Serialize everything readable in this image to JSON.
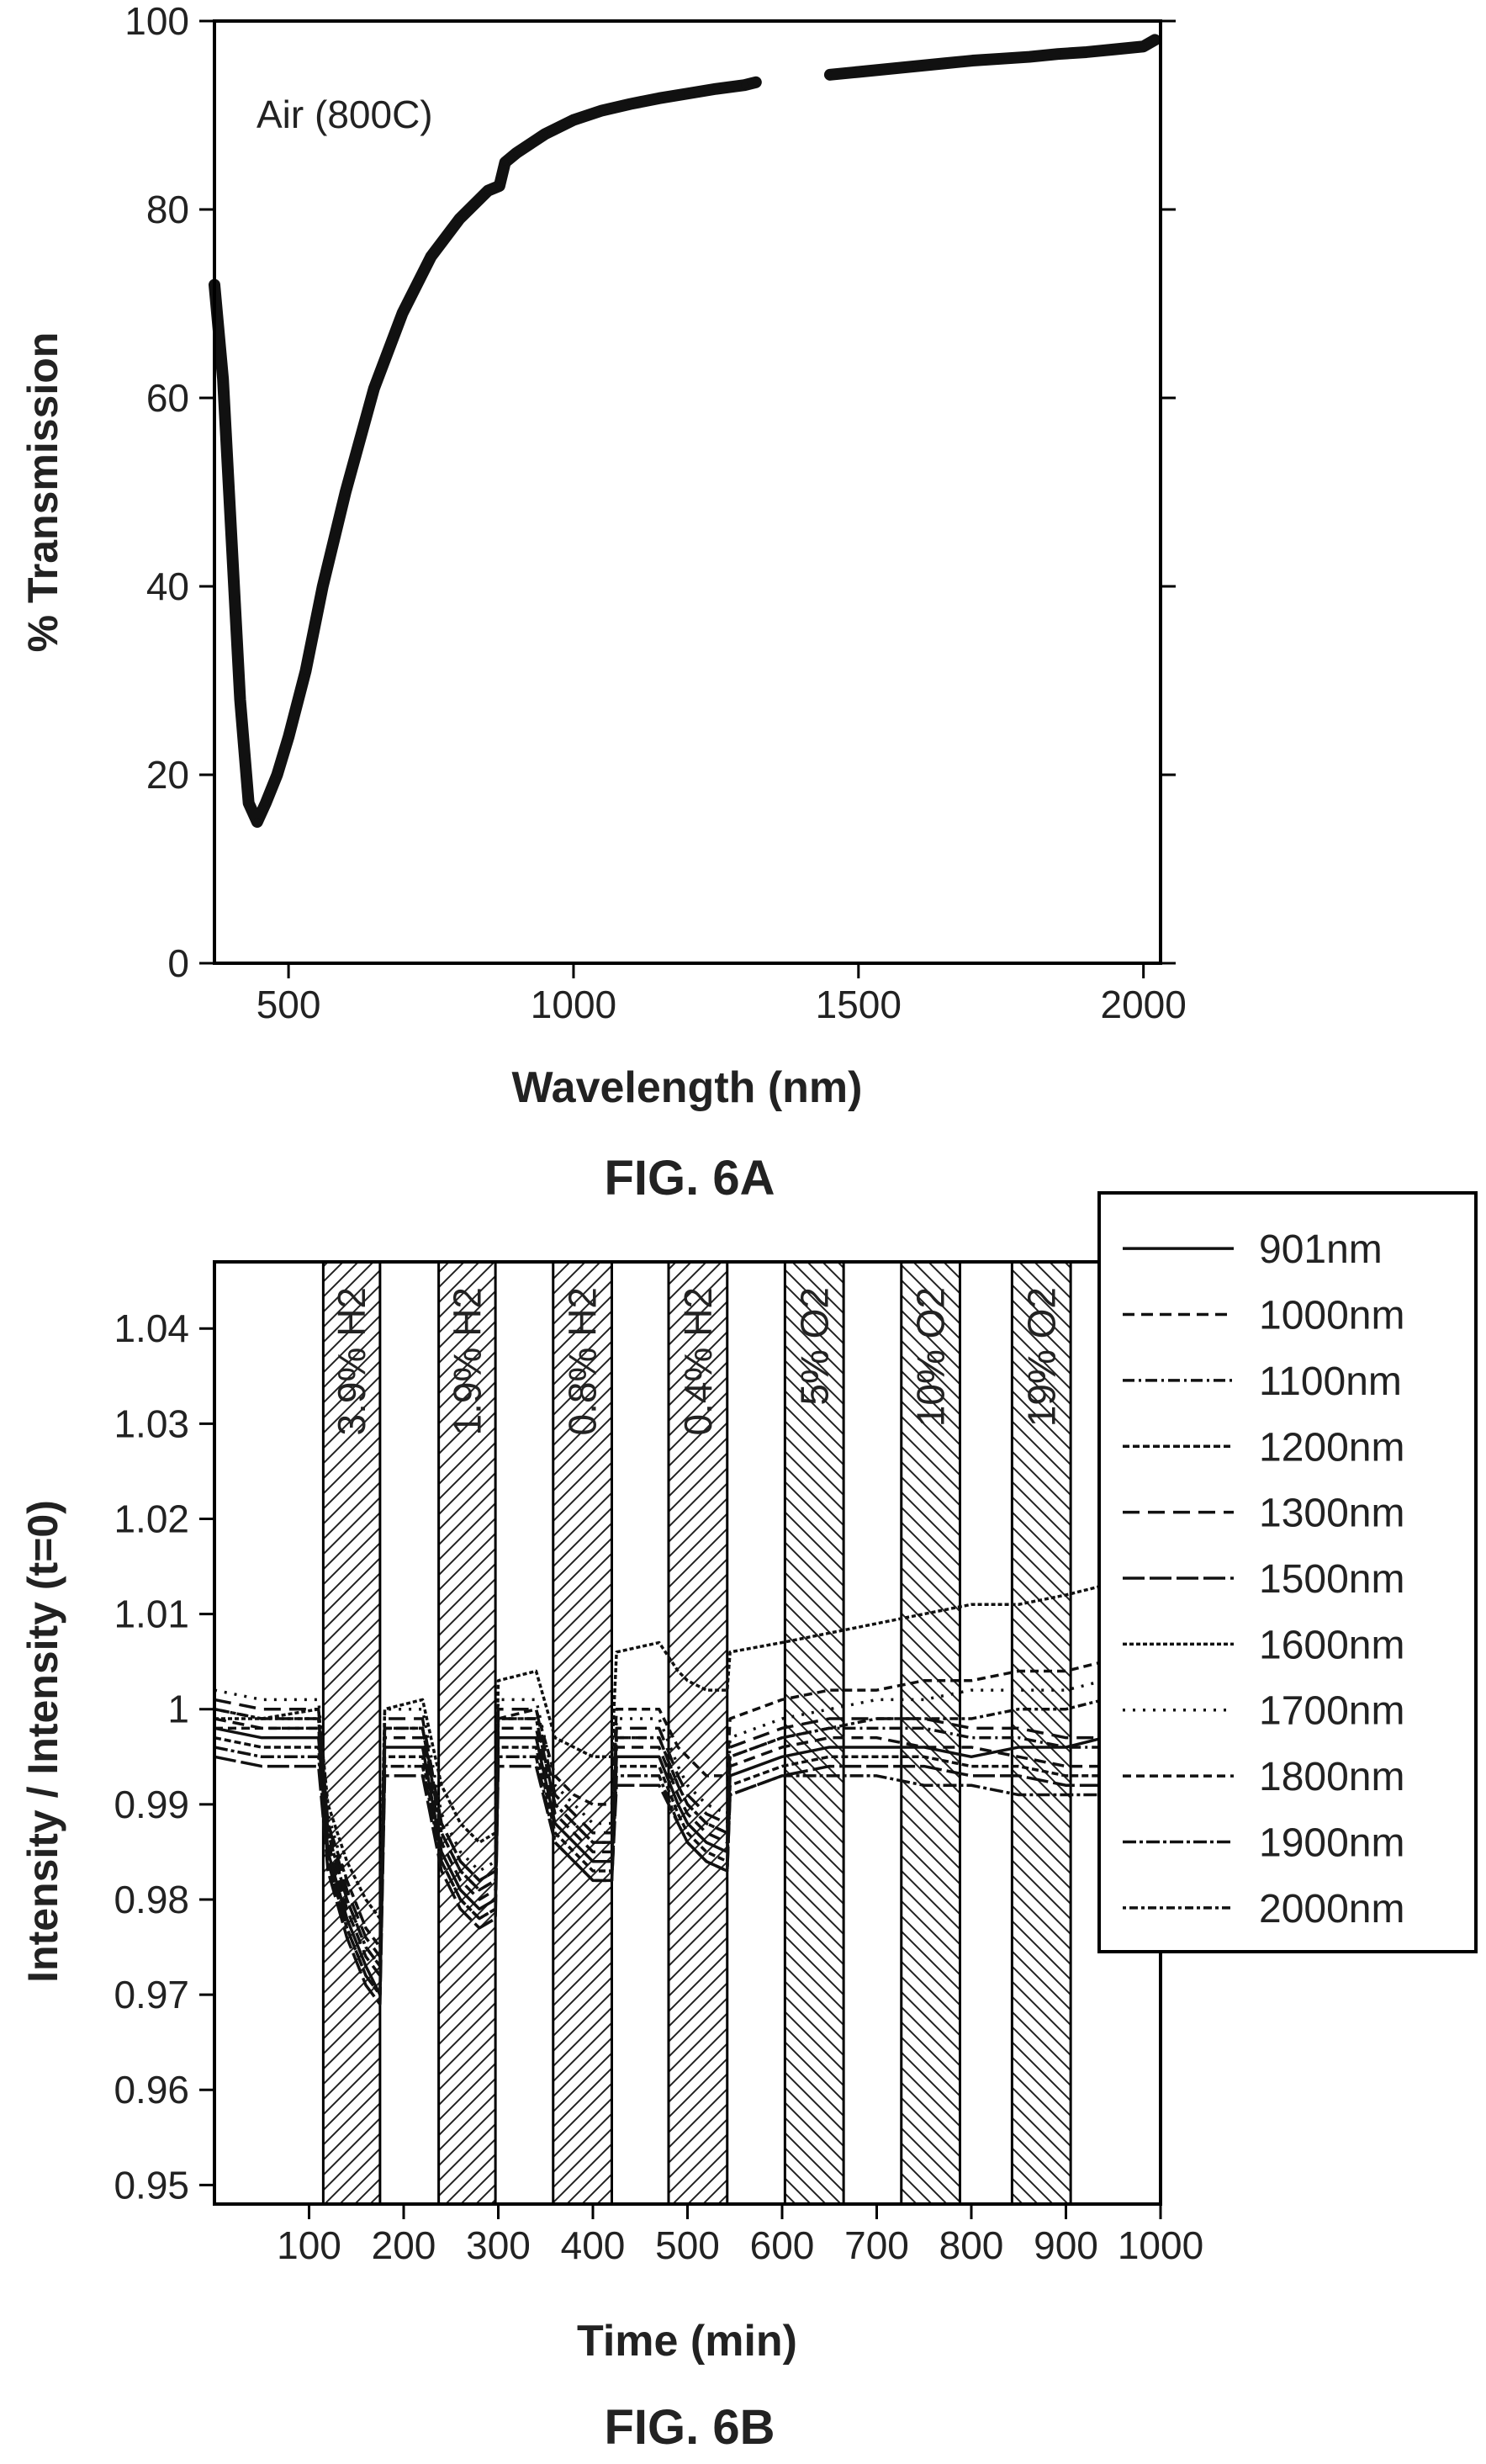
{
  "chart_data": [
    {
      "type": "scatter",
      "figure_label": "FIG. 6A",
      "xlabel": "Wavelength (nm)",
      "ylabel": "% Transmission",
      "xlim": [
        370,
        2030
      ],
      "ylim": [
        0,
        100
      ],
      "x_ticks": [
        500,
        1000,
        1500,
        2000
      ],
      "y_ticks": [
        0,
        20,
        40,
        60,
        80,
        100
      ],
      "annotation": "Air (800C)",
      "reference_line": {
        "y": 100,
        "style": "dotted"
      },
      "grid": false,
      "series": [
        {
          "x": [
            370,
            385,
            400,
            415,
            430,
            445,
            460,
            480,
            500,
            530,
            560,
            600,
            650,
            700,
            750,
            800,
            850,
            870,
            880,
            900,
            950,
            1000,
            1050,
            1100,
            1150,
            1200,
            1250,
            1300,
            1320,
            1450,
            1500,
            1550,
            1600,
            1650,
            1700,
            1750,
            1800,
            1850,
            1900,
            1950,
            2000,
            2020
          ],
          "y": [
            72,
            62,
            45,
            28,
            17,
            15,
            17,
            20,
            24,
            31,
            40,
            50,
            61,
            69,
            75,
            79,
            82,
            82.5,
            85,
            86,
            88,
            89.5,
            90.5,
            91.2,
            91.8,
            92.3,
            92.8,
            93.2,
            93.5,
            94.3,
            94.6,
            94.9,
            95.2,
            95.5,
            95.8,
            96,
            96.2,
            96.5,
            96.7,
            97,
            97.3,
            98
          ]
        }
      ]
    },
    {
      "type": "line",
      "figure_label": "FIG. 6B",
      "xlabel": "Time (min)",
      "ylabel": "Intensity / Intensity (t=0)",
      "xlim": [
        0,
        1000
      ],
      "ylim": [
        0.948,
        1.047
      ],
      "x_ticks": [
        100,
        200,
        300,
        400,
        500,
        600,
        700,
        800,
        900,
        1000
      ],
      "y_ticks": [
        "0.95",
        "0.96",
        "0.97",
        "0.98",
        "0.99",
        "1",
        "1.01",
        "1.02",
        "1.03",
        "1.04"
      ],
      "legend_position": "top-right, outside",
      "grid": false,
      "exposure_bands": [
        {
          "label": "3.9% H2",
          "start": 115,
          "end": 175,
          "hatch": "forward"
        },
        {
          "label": "1.9% H2",
          "start": 237,
          "end": 297,
          "hatch": "forward"
        },
        {
          "label": "0.8% H2",
          "start": 358,
          "end": 420,
          "hatch": "forward"
        },
        {
          "label": "0.4% H2",
          "start": 480,
          "end": 542,
          "hatch": "forward"
        },
        {
          "label": "5% O2",
          "start": 603,
          "end": 665,
          "hatch": "backward"
        },
        {
          "label": "10% O2",
          "start": 726,
          "end": 788,
          "hatch": "backward"
        },
        {
          "label": "19% O2",
          "start": 843,
          "end": 905,
          "hatch": "backward"
        }
      ],
      "x": [
        0,
        50,
        110,
        120,
        140,
        160,
        175,
        180,
        220,
        240,
        260,
        280,
        297,
        300,
        340,
        360,
        380,
        400,
        420,
        425,
        470,
        490,
        500,
        520,
        542,
        545,
        600,
        650,
        700,
        750,
        800,
        850,
        900,
        940
      ],
      "series": [
        {
          "name": "901nm",
          "dash": "",
          "values": [
            0.998,
            0.997,
            0.997,
            0.985,
            0.978,
            0.973,
            0.97,
            0.996,
            0.996,
            0.985,
            0.981,
            0.979,
            0.98,
            0.997,
            0.997,
            0.988,
            0.986,
            0.984,
            0.984,
            0.995,
            0.995,
            0.99,
            0.988,
            0.986,
            0.985,
            0.993,
            0.995,
            0.996,
            0.996,
            0.996,
            0.995,
            0.996,
            0.996,
            0.997
          ]
        },
        {
          "name": "1000nm",
          "dash": "14,8",
          "values": [
            0.999,
            0.998,
            0.998,
            0.986,
            0.979,
            0.974,
            0.972,
            0.997,
            0.997,
            0.986,
            0.982,
            0.98,
            0.981,
            0.998,
            0.998,
            0.989,
            0.987,
            0.985,
            0.985,
            0.996,
            0.996,
            0.991,
            0.989,
            0.987,
            0.986,
            0.994,
            0.996,
            0.997,
            0.997,
            0.996,
            0.996,
            0.995,
            0.994,
            0.994
          ]
        },
        {
          "name": "1100nm",
          "dash": "14,5,3,5",
          "values": [
            1.0,
            0.999,
            0.999,
            0.987,
            0.98,
            0.975,
            0.973,
            0.998,
            0.998,
            0.987,
            0.983,
            0.981,
            0.982,
            0.999,
            0.999,
            0.99,
            0.988,
            0.986,
            0.986,
            0.997,
            0.997,
            0.992,
            0.99,
            0.988,
            0.987,
            0.995,
            0.997,
            0.998,
            0.998,
            0.998,
            0.997,
            0.997,
            0.996,
            0.996
          ]
        },
        {
          "name": "1200nm",
          "dash": "8,4",
          "values": [
            0.997,
            0.996,
            0.996,
            0.984,
            0.977,
            0.972,
            0.97,
            0.995,
            0.995,
            0.984,
            0.98,
            0.978,
            0.979,
            0.996,
            0.996,
            0.987,
            0.985,
            0.983,
            0.983,
            0.994,
            0.994,
            0.989,
            0.987,
            0.985,
            0.984,
            0.992,
            0.994,
            0.995,
            0.995,
            0.995,
            0.994,
            0.994,
            0.993,
            0.993
          ]
        },
        {
          "name": "1300nm",
          "dash": "20,10",
          "values": [
            1.001,
            1.0,
            1.0,
            0.988,
            0.981,
            0.976,
            0.974,
            0.999,
            0.999,
            0.988,
            0.984,
            0.982,
            0.983,
            1.0,
            1.0,
            0.991,
            0.989,
            0.987,
            0.987,
            0.998,
            0.998,
            0.993,
            0.991,
            0.989,
            0.988,
            0.996,
            0.998,
            0.999,
            0.999,
            0.999,
            0.998,
            0.998,
            0.997,
            0.997
          ]
        },
        {
          "name": "1500nm",
          "dash": "26,6",
          "values": [
            0.995,
            0.994,
            0.994,
            0.983,
            0.976,
            0.971,
            0.969,
            0.993,
            0.993,
            0.983,
            0.979,
            0.977,
            0.978,
            0.994,
            0.994,
            0.986,
            0.984,
            0.982,
            0.982,
            0.992,
            0.992,
            0.988,
            0.986,
            0.984,
            0.983,
            0.991,
            0.993,
            0.994,
            0.994,
            0.994,
            0.993,
            0.993,
            0.992,
            0.992
          ]
        },
        {
          "name": "1600nm",
          "dash": "5,3",
          "values": [
            0.999,
            0.999,
            1.0,
            0.99,
            0.984,
            0.98,
            0.978,
            1.0,
            1.001,
            0.992,
            0.988,
            0.986,
            0.987,
            1.003,
            1.004,
            0.997,
            0.996,
            0.995,
            0.995,
            1.006,
            1.007,
            1.004,
            1.003,
            1.002,
            1.002,
            1.006,
            1.007,
            1.008,
            1.009,
            1.01,
            1.011,
            1.011,
            1.012,
            1.013
          ]
        },
        {
          "name": "1700nm",
          "dash": "3,9",
          "values": [
            1.002,
            1.001,
            1.001,
            0.989,
            0.982,
            0.977,
            0.975,
            1.0,
            1.0,
            0.989,
            0.985,
            0.983,
            0.984,
            1.001,
            1.001,
            0.992,
            0.99,
            0.988,
            0.988,
            0.999,
            0.999,
            0.994,
            0.992,
            0.99,
            0.989,
            0.997,
            0.999,
            1.0,
            1.001,
            1.001,
            1.002,
            1.002,
            1.002,
            1.003
          ]
        },
        {
          "name": "1800nm",
          "dash": "10,6",
          "values": [
            0.998,
            0.998,
            0.998,
            0.988,
            0.982,
            0.977,
            0.975,
            0.998,
            0.998,
            0.988,
            0.984,
            0.982,
            0.983,
            0.999,
            1.0,
            0.993,
            0.991,
            0.99,
            0.99,
            1.0,
            1.0,
            0.996,
            0.995,
            0.993,
            0.993,
            0.999,
            1.001,
            1.002,
            1.002,
            1.003,
            1.003,
            1.004,
            1.004,
            1.005
          ]
        },
        {
          "name": "1900nm",
          "dash": "16,4,4,4",
          "values": [
            0.996,
            0.995,
            0.995,
            0.984,
            0.977,
            0.972,
            0.97,
            0.994,
            0.994,
            0.984,
            0.98,
            0.978,
            0.979,
            0.995,
            0.995,
            0.986,
            0.984,
            0.982,
            0.982,
            0.993,
            0.993,
            0.988,
            0.986,
            0.984,
            0.983,
            0.991,
            0.993,
            0.993,
            0.993,
            0.992,
            0.992,
            0.991,
            0.991,
            0.991
          ]
        },
        {
          "name": "2000nm",
          "dash": "4,4,10,4",
          "values": [
            1.0,
            0.999,
            0.999,
            0.987,
            0.98,
            0.975,
            0.973,
            0.998,
            0.998,
            0.987,
            0.983,
            0.981,
            0.982,
            0.999,
            0.999,
            0.99,
            0.988,
            0.986,
            0.986,
            0.997,
            0.997,
            0.992,
            0.99,
            0.988,
            0.987,
            0.995,
            0.997,
            0.998,
            0.999,
            0.999,
            0.999,
            1.0,
            1.0,
            1.001
          ]
        }
      ]
    }
  ]
}
